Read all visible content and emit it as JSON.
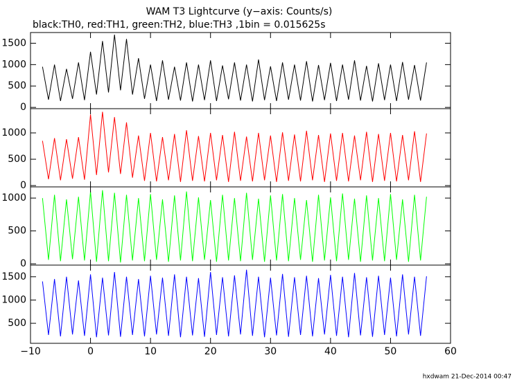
{
  "footer": "hxdwam 21-Dec-2014 00:47",
  "chart_data": [
    {
      "type": "line",
      "title": "WAM T3 Lightcurve (y−axis: Counts/s)",
      "subtitle": "black:TH0, red:TH1, green:TH2, blue:TH3 ,1bin = 0.015625s",
      "color": "#000000",
      "xlim": [
        -10,
        60
      ],
      "xticks": [
        -10,
        0,
        10,
        20,
        30,
        40,
        50,
        60
      ],
      "ylim": [
        -30,
        1750
      ],
      "yticks": [
        0,
        500,
        1000,
        1500
      ],
      "grid": false,
      "x": [
        -8,
        -7,
        -6,
        -5,
        -4,
        -3,
        -2,
        -1,
        0,
        1,
        2,
        3,
        4,
        5,
        6,
        7,
        8,
        9,
        10,
        11,
        12,
        13,
        14,
        15,
        16,
        17,
        18,
        19,
        20,
        21,
        22,
        23,
        24,
        25,
        26,
        27,
        28,
        29,
        30,
        31,
        32,
        33,
        34,
        35,
        36,
        37,
        38,
        39,
        40,
        41,
        42,
        43,
        44,
        45,
        46,
        47,
        48,
        49,
        50,
        51,
        52,
        53,
        54,
        55,
        56
      ],
      "values": [
        950,
        180,
        1000,
        150,
        900,
        200,
        1050,
        170,
        1300,
        300,
        1550,
        350,
        1700,
        400,
        1600,
        300,
        1150,
        200,
        1000,
        150,
        1100,
        180,
        950,
        160,
        1050,
        140,
        1000,
        170,
        1100,
        150,
        980,
        190,
        1050,
        160,
        1000,
        140,
        1120,
        170,
        960,
        150,
        1050,
        180,
        1000,
        160,
        1080,
        140,
        990,
        170,
        1040,
        150,
        1000,
        180,
        1100,
        160,
        970,
        140,
        1030,
        170,
        1000,
        150,
        1060,
        180,
        990,
        160,
        1050
      ]
    },
    {
      "type": "line",
      "color": "#ff0000",
      "xlim": [
        -10,
        60
      ],
      "xticks": [
        -10,
        0,
        10,
        20,
        30,
        40,
        50,
        60
      ],
      "ylim": [
        -25,
        1460
      ],
      "yticks": [
        0,
        500,
        1000
      ],
      "grid": false,
      "x": [
        -8,
        -7,
        -6,
        -5,
        -4,
        -3,
        -2,
        -1,
        0,
        1,
        2,
        3,
        4,
        5,
        6,
        7,
        8,
        9,
        10,
        11,
        12,
        13,
        14,
        15,
        16,
        17,
        18,
        19,
        20,
        21,
        22,
        23,
        24,
        25,
        26,
        27,
        28,
        29,
        30,
        31,
        32,
        33,
        34,
        35,
        36,
        37,
        38,
        39,
        40,
        41,
        42,
        43,
        44,
        45,
        46,
        47,
        48,
        49,
        50,
        51,
        52,
        53,
        54,
        55,
        56
      ],
      "values": [
        850,
        120,
        900,
        100,
        880,
        130,
        920,
        110,
        1350,
        200,
        1400,
        250,
        1300,
        220,
        1200,
        150,
        950,
        90,
        1000,
        80,
        920,
        100,
        980,
        70,
        1050,
        90,
        940,
        80,
        1000,
        100,
        960,
        70,
        1020,
        90,
        930,
        80,
        1000,
        100,
        950,
        70,
        1010,
        90,
        970,
        80,
        1040,
        100,
        960,
        70,
        990,
        90,
        1000,
        80,
        950,
        100,
        1020,
        70,
        980,
        90,
        1000,
        80,
        960,
        100,
        1030,
        70,
        990
      ]
    },
    {
      "type": "line",
      "color": "#00ff00",
      "xlim": [
        -10,
        60
      ],
      "xticks": [
        -10,
        0,
        10,
        20,
        30,
        40,
        50,
        60
      ],
      "ylim": [
        -20,
        1170
      ],
      "yticks": [
        0,
        500,
        1000
      ],
      "grid": false,
      "x": [
        -8,
        -7,
        -6,
        -5,
        -4,
        -3,
        -2,
        -1,
        0,
        1,
        2,
        3,
        4,
        5,
        6,
        7,
        8,
        9,
        10,
        11,
        12,
        13,
        14,
        15,
        16,
        17,
        18,
        19,
        20,
        21,
        22,
        23,
        24,
        25,
        26,
        27,
        28,
        29,
        30,
        31,
        32,
        33,
        34,
        35,
        36,
        37,
        38,
        39,
        40,
        41,
        42,
        43,
        44,
        45,
        46,
        47,
        48,
        49,
        50,
        51,
        52,
        53,
        54,
        55,
        56
      ],
      "values": [
        1000,
        60,
        1050,
        40,
        980,
        70,
        1020,
        50,
        1100,
        30,
        1120,
        40,
        1080,
        20,
        1050,
        50,
        1000,
        40,
        1060,
        60,
        980,
        30,
        1040,
        50,
        1100,
        40,
        1010,
        60,
        970,
        30,
        1050,
        50,
        1000,
        40,
        1080,
        60,
        990,
        30,
        1040,
        50,
        1060,
        40,
        1000,
        60,
        970,
        30,
        1050,
        50,
        1010,
        40,
        1070,
        60,
        990,
        30,
        1040,
        50,
        1000,
        40,
        1060,
        60,
        980,
        30,
        1050,
        50,
        1020
      ]
    },
    {
      "type": "line",
      "color": "#0000ff",
      "xlim": [
        -10,
        60
      ],
      "xticks": [
        {
          "value": -10,
          "label": "−10"
        },
        0,
        10,
        20,
        30,
        40,
        50,
        60
      ],
      "ylim": [
        70,
        1750
      ],
      "yticks": [
        500,
        1000,
        1500
      ],
      "grid": false,
      "x": [
        -8,
        -7,
        -6,
        -5,
        -4,
        -3,
        -2,
        -1,
        0,
        1,
        2,
        3,
        4,
        5,
        6,
        7,
        8,
        9,
        10,
        11,
        12,
        13,
        14,
        15,
        16,
        17,
        18,
        19,
        20,
        21,
        22,
        23,
        24,
        25,
        26,
        27,
        28,
        29,
        30,
        31,
        32,
        33,
        34,
        35,
        36,
        37,
        38,
        39,
        40,
        41,
        42,
        43,
        44,
        45,
        46,
        47,
        48,
        49,
        50,
        51,
        52,
        53,
        54,
        55,
        56
      ],
      "values": [
        1400,
        250,
        1450,
        220,
        1500,
        260,
        1420,
        230,
        1550,
        200,
        1480,
        240,
        1600,
        210,
        1500,
        250,
        1450,
        220,
        1520,
        260,
        1480,
        230,
        1550,
        200,
        1500,
        240,
        1470,
        210,
        1600,
        250,
        1490,
        220,
        1530,
        260,
        1650,
        230,
        1500,
        200,
        1480,
        240,
        1560,
        210,
        1490,
        250,
        1520,
        220,
        1470,
        260,
        1540,
        230,
        1500,
        200,
        1580,
        240,
        1490,
        210,
        1520,
        250,
        1480,
        220,
        1550,
        260,
        1500,
        230,
        1510
      ]
    }
  ]
}
